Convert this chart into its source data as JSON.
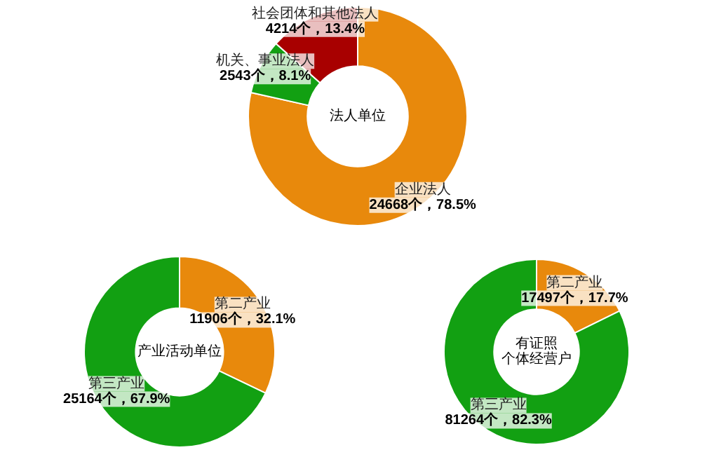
{
  "chart_data": [
    {
      "type": "donut",
      "title": "法人单位",
      "categories": [
        "企业法人",
        "机关、事业法人",
        "社会团体和其他法人"
      ],
      "values": [
        24668,
        2543,
        4214
      ],
      "colors": [
        "#e8890c",
        "#12a012",
        "#a80000"
      ],
      "value_labels": [
        "24668个，78.5%",
        "2543个，8.1%",
        "4214个，13.4%"
      ]
    },
    {
      "type": "donut",
      "title": "产业活动单位",
      "categories": [
        "第二产业",
        "第三产业"
      ],
      "values": [
        11906,
        25164
      ],
      "colors": [
        "#e8890c",
        "#12a012"
      ],
      "value_labels": [
        "11906个，32.1%",
        "25164个，67.9%"
      ]
    },
    {
      "type": "donut",
      "title": "有证照个体经营户",
      "categories": [
        "第二产业",
        "第三产业"
      ],
      "values": [
        17497,
        81264
      ],
      "colors": [
        "#e8890c",
        "#12a012"
      ],
      "value_labels": [
        "17497个，17.7%",
        "81264个，82.3%"
      ]
    }
  ]
}
